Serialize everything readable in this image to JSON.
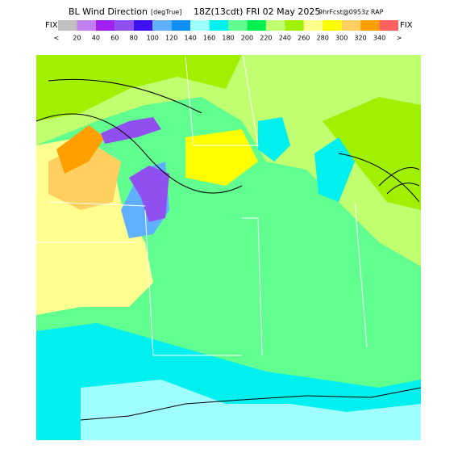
{
  "header": {
    "title": "BL Wind Direction",
    "units": "[degTrue]",
    "time": "18Z(13cdt) FRI 02 May 2025",
    "source": "9hrFcst@0953z RAP"
  },
  "colorbar": {
    "left_label": "FIX",
    "right_label": "FIX",
    "start_label": "<",
    "end_label": ">",
    "ticks": [
      20,
      40,
      60,
      80,
      100,
      120,
      140,
      160,
      180,
      200,
      220,
      240,
      260,
      280,
      300,
      320,
      340
    ],
    "colors": [
      "#c0c0c0",
      "#c080f0",
      "#a020f0",
      "#9050f0",
      "#4010f0",
      "#60b0ff",
      "#1090f0",
      "#a0ffff",
      "#00f0f0",
      "#60ff90",
      "#00f050",
      "#c0ff70",
      "#a0f000",
      "#ffff90",
      "#ffff00",
      "#ffd060",
      "#ffa000",
      "#ff6060"
    ]
  }
}
